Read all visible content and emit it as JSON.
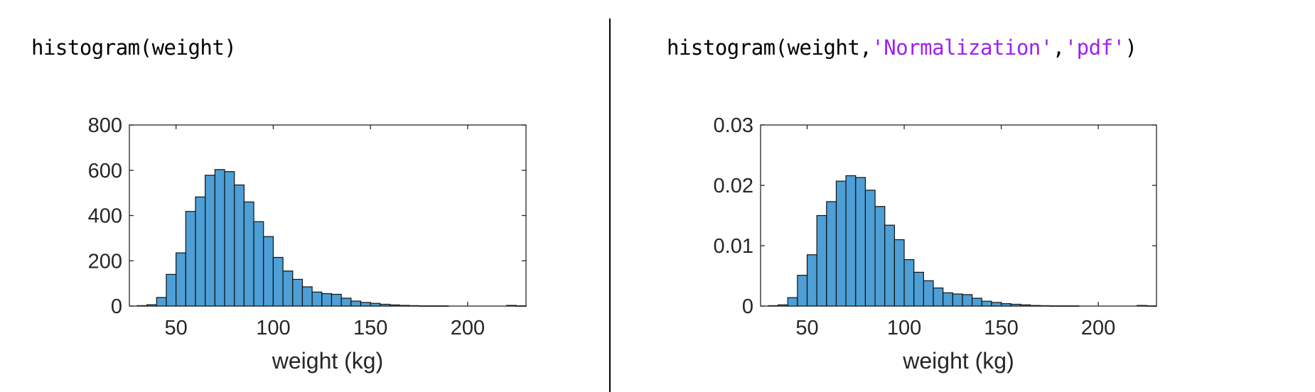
{
  "panels": [
    {
      "code": {
        "prefix": "histogram(weight",
        "args": [],
        "suffix": ")"
      },
      "chart_data": {
        "type": "bar",
        "subtype": "histogram",
        "title": "",
        "xlabel": "weight (kg)",
        "ylabel": "",
        "xlim": [
          26,
          230
        ],
        "ylim": [
          0,
          800
        ],
        "xticks": [
          50,
          100,
          150,
          200
        ],
        "yticks": [
          0,
          200,
          400,
          600,
          800
        ],
        "ytick_labels": [
          "0",
          "200",
          "400",
          "600",
          "800"
        ],
        "bin_width": 5,
        "bin_edges_start": 30,
        "values": [
          2,
          6,
          38,
          140,
          235,
          418,
          482,
          578,
          603,
          594,
          535,
          460,
          373,
          307,
          215,
          155,
          118,
          85,
          62,
          55,
          52,
          35,
          22,
          16,
          12,
          8,
          5,
          3,
          2,
          1,
          1,
          1,
          0,
          0,
          0,
          0,
          0,
          0,
          3,
          1
        ],
        "bar_color": "#4d9fd6",
        "grid": false
      }
    },
    {
      "code": {
        "prefix": "histogram(weight,",
        "args": [
          "'Normalization'",
          "'pdf'"
        ],
        "separator": ",",
        "suffix": ")"
      },
      "chart_data": {
        "type": "bar",
        "subtype": "histogram",
        "title": "",
        "xlabel": "weight (kg)",
        "ylabel": "",
        "xlim": [
          26,
          230
        ],
        "ylim": [
          0,
          0.03
        ],
        "xticks": [
          50,
          100,
          150,
          200
        ],
        "yticks": [
          0,
          0.01,
          0.02,
          0.03
        ],
        "ytick_labels": [
          "0",
          "0.01",
          "0.02",
          "0.03"
        ],
        "bin_width": 5,
        "bin_edges_start": 30,
        "values": [
          7e-05,
          0.0002,
          0.0014,
          0.0051,
          0.0085,
          0.015,
          0.0173,
          0.0207,
          0.0216,
          0.0213,
          0.0192,
          0.0165,
          0.0134,
          0.011,
          0.0077,
          0.0056,
          0.0042,
          0.003,
          0.0022,
          0.002,
          0.0019,
          0.0013,
          0.0008,
          0.0006,
          0.0004,
          0.0003,
          0.0002,
          0.0001,
          7e-05,
          4e-05,
          4e-05,
          4e-05,
          0,
          0,
          0,
          0,
          0,
          0,
          0.0001,
          4e-05
        ],
        "bar_color": "#4d9fd6",
        "grid": false
      }
    }
  ]
}
